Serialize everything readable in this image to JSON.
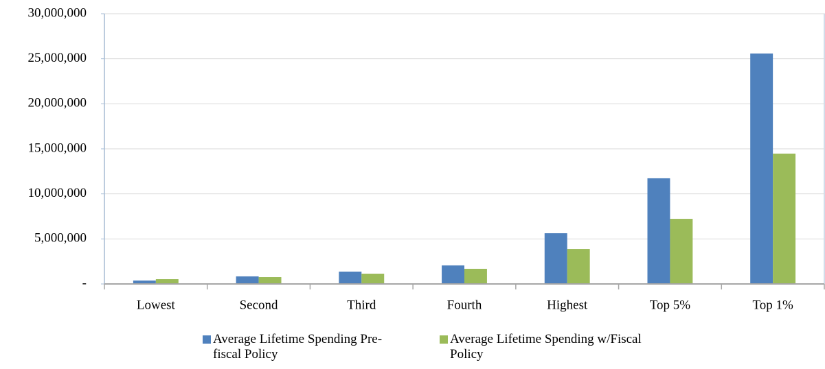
{
  "chart_data": {
    "type": "bar",
    "categories": [
      "Lowest",
      "Second",
      "Third",
      "Fourth",
      "Highest",
      "Top 5%",
      "Top 1%"
    ],
    "series": [
      {
        "name": "Average Lifetime Spending Pre-fiscal Policy",
        "color": "#4f81bd",
        "values": [
          380000,
          840000,
          1370000,
          2060000,
          5630000,
          11730000,
          25580000
        ]
      },
      {
        "name": "Average Lifetime Spending w/Fiscal Policy",
        "color": "#9bbb59",
        "values": [
          530000,
          760000,
          1140000,
          1680000,
          3880000,
          7230000,
          14470000
        ]
      }
    ],
    "ylim": [
      0,
      30000000
    ],
    "yticks": [
      {
        "value": 0,
        "label": "-"
      },
      {
        "value": 5000000,
        "label": "5,000,000"
      },
      {
        "value": 10000000,
        "label": "10,000,000"
      },
      {
        "value": 15000000,
        "label": "15,000,000"
      },
      {
        "value": 20000000,
        "label": "20,000,000"
      },
      {
        "value": 25000000,
        "label": "25,000,000"
      },
      {
        "value": 30000000,
        "label": "30,000,000"
      }
    ],
    "grid": true,
    "legend": "bottom"
  }
}
